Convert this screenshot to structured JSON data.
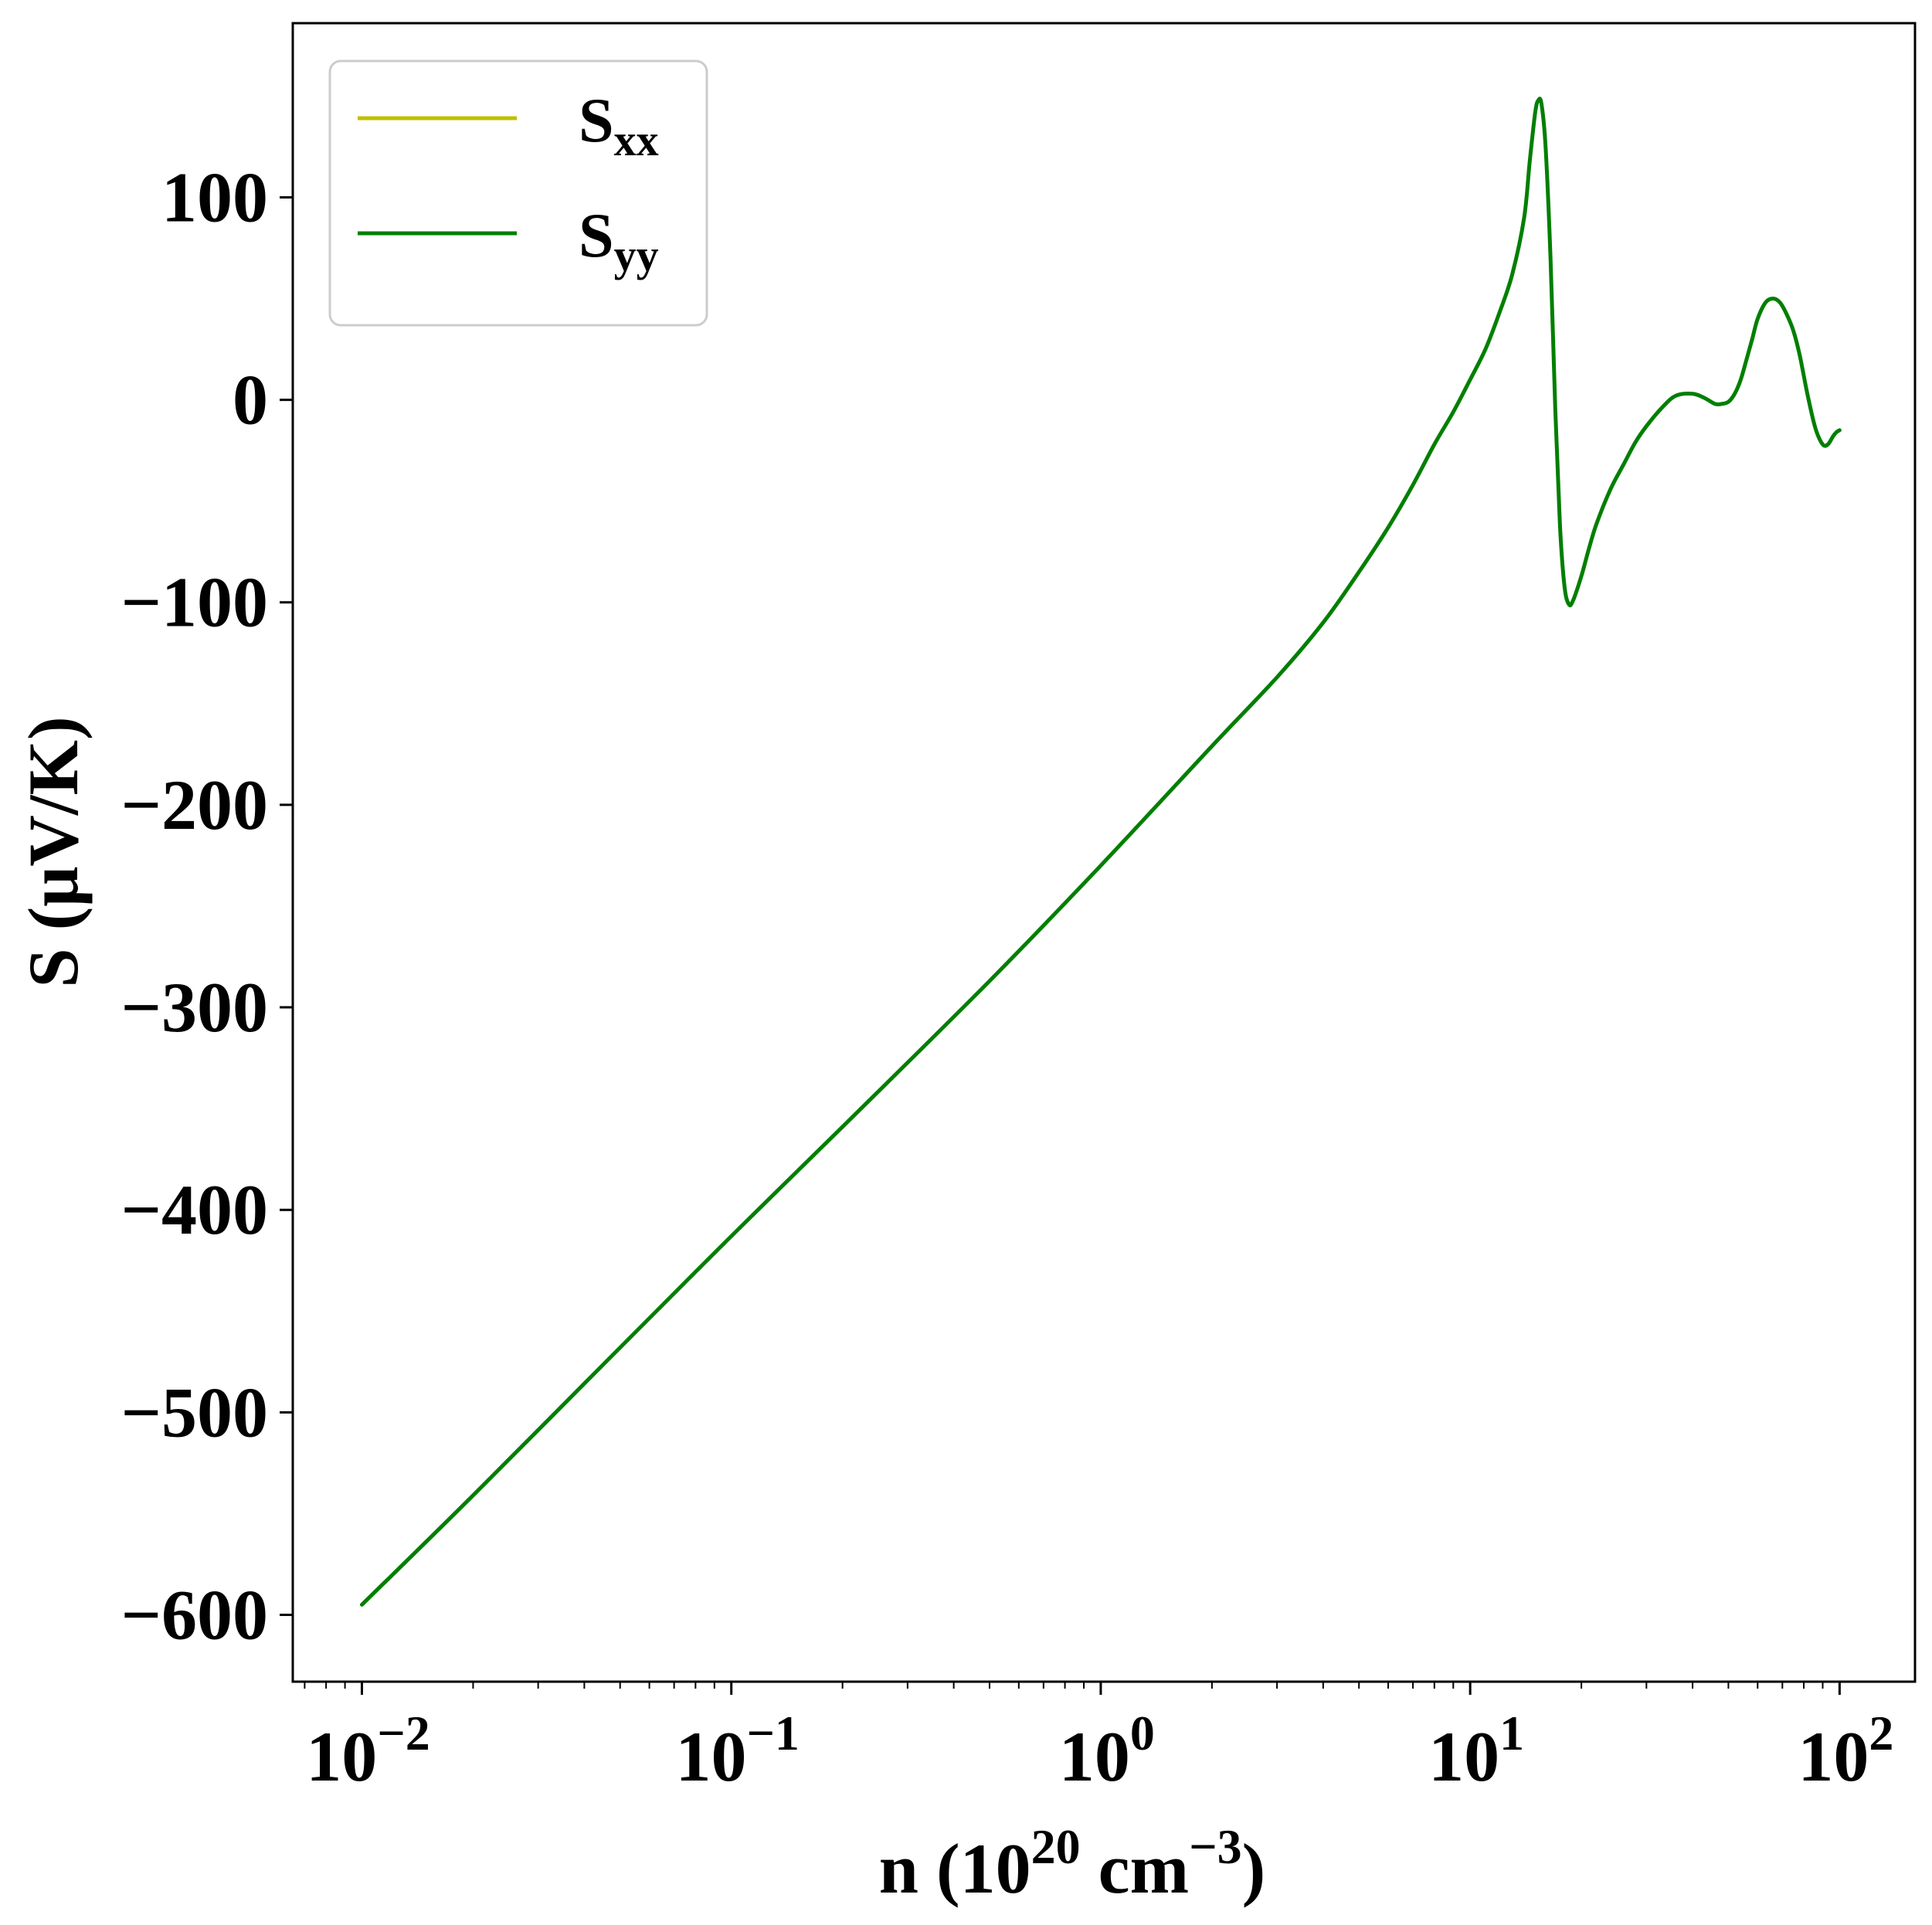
{
  "chart_data": {
    "type": "line",
    "x_scale": "log",
    "xlabel": {
      "base": "n (10",
      "exp1": "20",
      "mid": " cm",
      "exp2": "−3",
      "end": ")"
    },
    "ylabel": "S (μV/K)",
    "xlim": [
      0.0065,
      160
    ],
    "ylim": [
      -633,
      186
    ],
    "x_major_ticks": [
      {
        "value": 0.01,
        "base": "10",
        "exp": "−2"
      },
      {
        "value": 0.1,
        "base": "10",
        "exp": "−1"
      },
      {
        "value": 1,
        "base": "10",
        "exp": "0"
      },
      {
        "value": 10,
        "base": "10",
        "exp": "1"
      },
      {
        "value": 100,
        "base": "10",
        "exp": "2"
      }
    ],
    "y_ticks": [
      {
        "value": 100,
        "label": "100"
      },
      {
        "value": 0,
        "label": "0"
      },
      {
        "value": -100,
        "label": "−100"
      },
      {
        "value": -200,
        "label": "−200"
      },
      {
        "value": -300,
        "label": "−300"
      },
      {
        "value": -400,
        "label": "−400"
      },
      {
        "value": -500,
        "label": "−500"
      },
      {
        "value": -600,
        "label": "−600"
      }
    ],
    "grid": false,
    "legend_position": "top-left",
    "series": [
      {
        "name_base": "S",
        "name_sub": "xx",
        "color": "#bfbf00",
        "visible_in_plot": false,
        "x": [],
        "y": []
      },
      {
        "name_base": "S",
        "name_sub": "yy",
        "color": "#007f00",
        "visible_in_plot": true,
        "x": [
          0.01,
          0.02,
          0.05,
          0.1,
          0.2,
          0.5,
          1,
          2,
          3,
          4,
          5,
          6,
          7,
          8,
          9,
          10,
          11,
          12,
          13,
          14,
          14.5,
          15,
          15.3,
          15.6,
          16,
          16.5,
          17,
          17.5,
          18,
          18.5,
          19,
          20,
          21,
          22,
          24,
          26,
          28,
          30,
          33,
          36,
          40,
          43,
          46,
          48,
          50,
          52,
          54,
          56,
          58,
          60,
          63,
          66,
          69,
          72,
          75,
          78,
          82,
          86,
          90,
          93,
          96,
          98,
          100
        ],
        "y": [
          -595,
          -541,
          -468,
          -413,
          -359,
          -287,
          -230,
          -171,
          -137,
          -110,
          -85,
          -63,
          -42,
          -22,
          -6,
          10,
          25,
          43,
          62,
          90,
          118,
          142,
          148,
          146,
          125,
          70,
          -5,
          -62,
          -92,
          -101,
          -99,
          -87,
          -73,
          -61,
          -44,
          -32,
          -21,
          -13,
          -4,
          2,
          3,
          1,
          -2,
          -2,
          -1,
          3,
          10,
          20,
          30,
          40,
          48,
          50,
          48,
          42,
          34,
          22,
          2,
          -14,
          -22,
          -22,
          -18,
          -16,
          -15
        ]
      }
    ]
  }
}
